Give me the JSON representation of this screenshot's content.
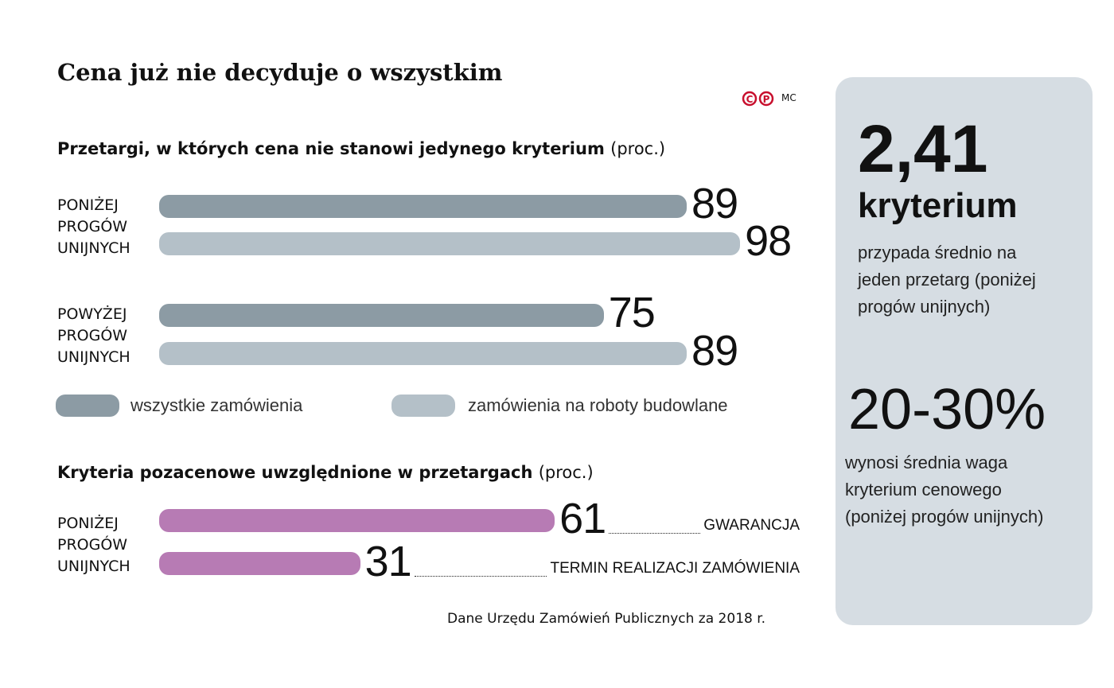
{
  "title": "Cena już nie decyduje o wszystkim",
  "credits": {
    "logo": "CP",
    "author": "MC"
  },
  "source": "Dane Urzędu Zamówień Publicznych za 2018 r.",
  "colors": {
    "all": "#8c9ba4",
    "construction": "#b4c0c8",
    "nonprice": "#b77bb4",
    "panel": "#d6dde3",
    "logo": "#c8102e"
  },
  "chart_data": [
    {
      "type": "bar",
      "orientation": "horizontal",
      "title": "Przetargi, w których cena nie stanowi jedynego kryterium",
      "unit": "(proc.)",
      "categories": [
        "PONIŻEJ PROGÓW UNIJNYCH",
        "POWYŻEJ PROGÓW UNIJNYCH"
      ],
      "series": [
        {
          "name": "wszystkie zamówienia",
          "values": [
            89,
            75
          ]
        },
        {
          "name": "zamówienia na roboty budowlane",
          "values": [
            98,
            89
          ]
        }
      ],
      "legend": "bottom"
    },
    {
      "type": "bar",
      "orientation": "horizontal",
      "title": "Kryteria pozacenowe uwzględnione w przetargach",
      "unit": "(proc.)",
      "group": "PONIŻEJ PROGÓW UNIJNYCH",
      "categories": [
        "GWARANCJA",
        "TERMIN REALIZACJI ZAMÓWIENIA"
      ],
      "values": [
        61,
        31
      ]
    }
  ],
  "panel": {
    "stat1": "2,41",
    "stat1_unit": "kryterium",
    "stat1_text": "przypada średnio na jeden przetarg (poniżej progów unijnych)",
    "stat2": "20-30%",
    "stat2_text": "wynosi średnia waga kryterium cenowego (poniżej progów unijnych)"
  }
}
